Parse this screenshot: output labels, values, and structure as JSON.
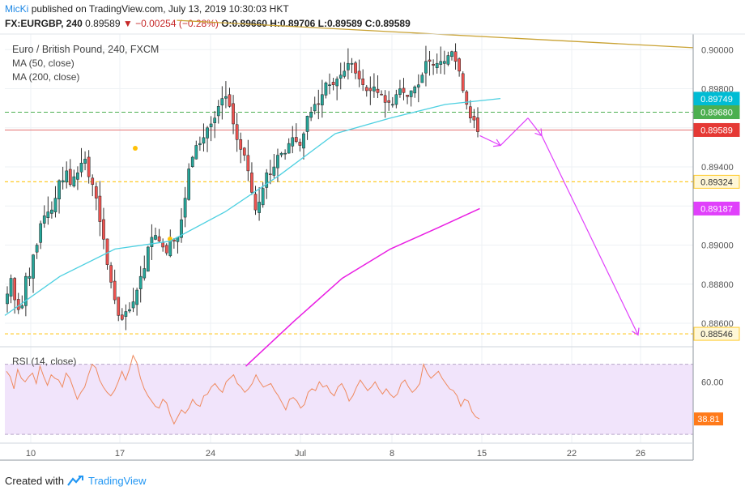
{
  "header": {
    "author": "MicKi",
    "published_text": "published on TradingView.com, July 13, 2019 10:30:03 HKT",
    "symbol": "FX:EURGBP, 240",
    "last": "0.89589",
    "change": "▼ −0.00254 (−0.28%)",
    "open": "O:0.89660",
    "high": "H:0.89706",
    "low": "L:0.89589",
    "close": "C:0.89589"
  },
  "legend": {
    "title": "Euro / British Pound, 240, FXCM",
    "ma50": "MA (50, close)",
    "ma200": "MA (200, close)",
    "rsi": "RSI (14, close)"
  },
  "footer": {
    "created_with": "Created with",
    "brand": "TradingView"
  },
  "colors": {
    "up": "#26a69a",
    "down": "#ef5350",
    "ma50": "#4dd0e1",
    "ma200": "#e91ee3",
    "trendline": "#c9a233",
    "projection": "#e040fb",
    "rsi_line": "#ef8a5f",
    "rsi_band": "#f1e4fb",
    "price_tag": "#e53935"
  },
  "chart_data": [
    {
      "type": "candlestick",
      "title": "Euro / British Pound, 240, FXCM",
      "x_tick_labels": [
        "10",
        "17",
        "24",
        "Jul",
        "8",
        "15",
        "22",
        "26"
      ],
      "y_tick_labels": [
        "0.90000",
        "0.89800",
        "0.89400",
        "0.89000",
        "0.88800",
        "0.88600"
      ],
      "ylim": [
        0.8848,
        0.9008
      ],
      "price_labels": [
        {
          "label": "0.89749",
          "value": 0.89749,
          "color": "#00bcd4"
        },
        {
          "label": "0.89680",
          "value": 0.8968,
          "color": "#4caf50"
        },
        {
          "label": "0.89589",
          "value": 0.89589,
          "color": "#e53935"
        },
        {
          "label": "0.89324",
          "value": 0.89324,
          "color": "#ffca28"
        },
        {
          "label": "0.89187",
          "value": 0.89187,
          "color": "#e040fb"
        },
        {
          "label": "0.88546",
          "value": 0.88546,
          "color": "#ffca28"
        }
      ],
      "horizontal_levels": [
        {
          "value": 0.8968,
          "style": "dashed",
          "color": "#4caf50"
        },
        {
          "value": 0.89589,
          "style": "solid",
          "color": "#e57373"
        },
        {
          "value": 0.89324,
          "style": "dashed",
          "color": "#ffca28"
        },
        {
          "value": 0.88546,
          "style": "dashed",
          "color": "#ffca28"
        }
      ],
      "candle_closes": [
        0.8875,
        0.8883,
        0.8872,
        0.8867,
        0.8869,
        0.8884,
        0.8884,
        0.8895,
        0.89,
        0.8911,
        0.8915,
        0.8917,
        0.8918,
        0.8924,
        0.8933,
        0.8933,
        0.8938,
        0.8931,
        0.8935,
        0.8937,
        0.8942,
        0.8944,
        0.8935,
        0.8931,
        0.8924,
        0.8912,
        0.8903,
        0.889,
        0.8881,
        0.8872,
        0.8864,
        0.8862,
        0.8866,
        0.8867,
        0.8871,
        0.8877,
        0.8884,
        0.8888,
        0.8899,
        0.8904,
        0.8905,
        0.8902,
        0.8899,
        0.8896,
        0.8903,
        0.8902,
        0.8904,
        0.8913,
        0.8924,
        0.8939,
        0.8945,
        0.8951,
        0.8952,
        0.8955,
        0.896,
        0.8962,
        0.8965,
        0.8971,
        0.8975,
        0.8976,
        0.8971,
        0.8962,
        0.8954,
        0.8949,
        0.8946,
        0.8938,
        0.8927,
        0.8918,
        0.8922,
        0.8929,
        0.8937,
        0.8936,
        0.894,
        0.8946,
        0.8947,
        0.8947,
        0.8952,
        0.8955,
        0.8953,
        0.8951,
        0.8957,
        0.8966,
        0.8968,
        0.8972,
        0.8972,
        0.8977,
        0.8983,
        0.8982,
        0.8982,
        0.8985,
        0.8987,
        0.8989,
        0.8993,
        0.8993,
        0.8988,
        0.8985,
        0.8982,
        0.8979,
        0.8979,
        0.8981,
        0.8978,
        0.8977,
        0.8973,
        0.8973,
        0.8972,
        0.8977,
        0.898,
        0.8978,
        0.8976,
        0.8979,
        0.8981,
        0.8982,
        0.8987,
        0.8994,
        0.8994,
        0.8992,
        0.8993,
        0.8994,
        0.8994,
        0.8997,
        0.8999,
        0.8994,
        0.8989,
        0.8979,
        0.8972,
        0.8965,
        0.8964,
        0.8958
      ],
      "ma50": [
        [
          0,
          0.8864
        ],
        [
          0.08,
          0.8884
        ],
        [
          0.16,
          0.8898
        ],
        [
          0.24,
          0.8902
        ],
        [
          0.32,
          0.8917
        ],
        [
          0.4,
          0.8936
        ],
        [
          0.48,
          0.8957
        ],
        [
          0.56,
          0.8965
        ],
        [
          0.64,
          0.8972
        ],
        [
          0.72,
          0.8975
        ]
      ],
      "ma200": [
        [
          0.35,
          0.8838
        ],
        [
          0.42,
          0.8861
        ],
        [
          0.49,
          0.8883
        ],
        [
          0.56,
          0.8898
        ],
        [
          0.63,
          0.8909
        ],
        [
          0.69,
          0.89187
        ]
      ],
      "trendline": [
        [
          0.25,
          0.9015
        ],
        [
          1.0,
          0.9001
        ]
      ],
      "projection_path": [
        [
          0.69,
          0.8956
        ],
        [
          0.72,
          0.8951
        ],
        [
          0.76,
          0.8965
        ],
        [
          0.78,
          0.8956
        ],
        [
          0.92,
          0.8854
        ]
      ]
    },
    {
      "type": "line",
      "title": "RSI (14, close)",
      "last_label": "38.81",
      "y_tick_labels": [
        "60.00"
      ],
      "ylim": [
        25,
        80
      ],
      "band": [
        30,
        70
      ],
      "values": [
        66,
        63,
        56,
        67,
        62,
        60,
        63,
        65,
        59,
        69,
        63,
        58,
        64,
        62,
        61,
        57,
        65,
        62,
        56,
        50,
        54,
        57,
        64,
        70,
        68,
        61,
        57,
        54,
        52,
        55,
        60,
        66,
        61,
        67,
        75,
        71,
        62,
        56,
        52,
        49,
        46,
        45,
        50,
        48,
        41,
        36,
        40,
        44,
        42,
        45,
        50,
        47,
        46,
        52,
        53,
        57,
        59,
        56,
        54,
        60,
        62,
        64,
        59,
        57,
        54,
        56,
        59,
        64,
        60,
        57,
        58,
        59,
        55,
        52,
        48,
        44,
        50,
        51,
        49,
        45,
        47,
        54,
        56,
        55,
        60,
        57,
        58,
        54,
        52,
        57,
        59,
        55,
        49,
        52,
        57,
        61,
        58,
        55,
        57,
        60,
        56,
        53,
        56,
        53,
        51,
        53,
        59,
        61,
        57,
        54,
        56,
        59,
        70,
        65,
        62,
        64,
        66,
        62,
        59,
        56,
        55,
        52,
        46,
        50,
        49,
        43,
        40,
        38.81
      ]
    }
  ]
}
